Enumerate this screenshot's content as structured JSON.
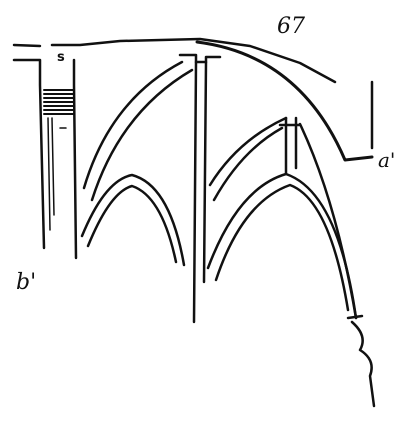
{
  "figure": {
    "number": "67",
    "labels": {
      "s": "s",
      "a": "a'",
      "b": "b'"
    }
  }
}
